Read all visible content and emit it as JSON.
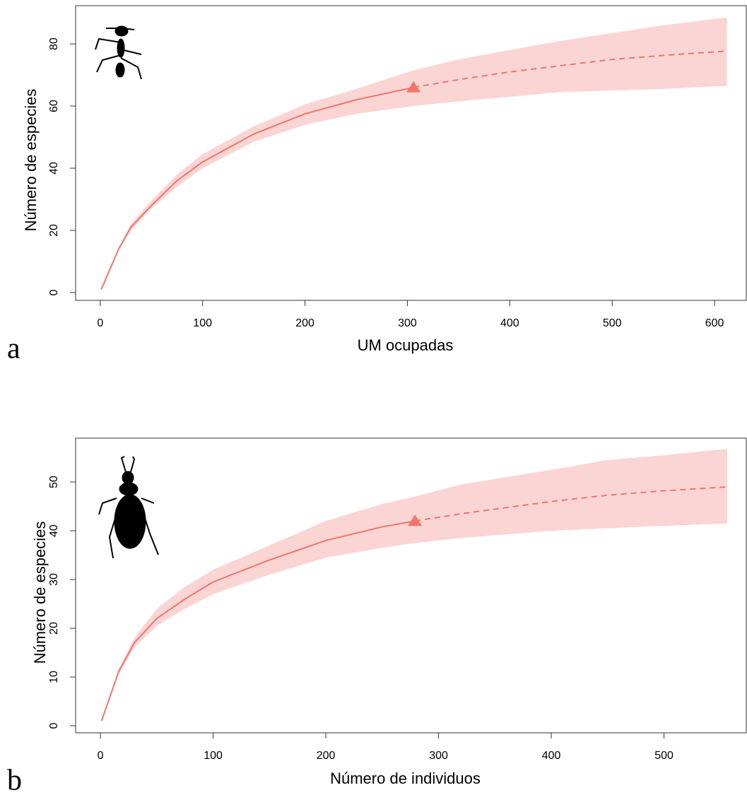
{
  "chart_data": [
    {
      "type": "line",
      "panel_label": "a",
      "x_label": "UM ocupadas",
      "y_label": "Número de especies",
      "x": [
        1,
        18,
        30,
        50,
        75,
        100,
        150,
        200,
        250,
        306,
        350,
        400,
        450,
        500,
        550,
        612
      ],
      "series": [
        {
          "color": "#f0756b",
          "style": "solid",
          "values": [
            1,
            14,
            21,
            28,
            36,
            42,
            51,
            57.5,
            62,
            66,
            null,
            null,
            null,
            null,
            null,
            null
          ]
        },
        {
          "color": "#f0756b",
          "style": "dashed",
          "values": [
            null,
            null,
            null,
            null,
            null,
            null,
            null,
            null,
            null,
            66,
            68.5,
            71,
            73,
            75,
            76.3,
            77.7
          ]
        }
      ],
      "band_color": "#fbd5d3",
      "lower": [
        1,
        13.5,
        20,
        27,
        34,
        40,
        48.5,
        54,
        57.5,
        60,
        61.5,
        63,
        64.5,
        65,
        65.5,
        66.5
      ],
      "upper": [
        1,
        14.5,
        22,
        29.5,
        38,
        44.5,
        53.5,
        60.5,
        65.5,
        71.5,
        75,
        78,
        81,
        83.5,
        86,
        88.5
      ],
      "observed": {
        "x": 306,
        "y": 66
      },
      "xlim": [
        -24,
        631
      ],
      "ylim": [
        -2.5,
        92.3
      ],
      "xticks": [
        0,
        100,
        200,
        300,
        400,
        500,
        600
      ],
      "yticks": [
        0,
        20,
        40,
        60,
        80
      ]
    },
    {
      "type": "line",
      "panel_label": "b",
      "x_label": "Número de individuos",
      "y_label": "Número de especies",
      "x": [
        1,
        16,
        30,
        50,
        75,
        100,
        150,
        200,
        250,
        279,
        320,
        400,
        450,
        500,
        556
      ],
      "series": [
        {
          "color": "#f0756b",
          "style": "solid",
          "values": [
            1,
            11,
            17,
            22,
            26,
            29.5,
            34,
            38,
            40.8,
            42,
            null,
            null,
            null,
            null,
            null
          ]
        },
        {
          "color": "#f0756b",
          "style": "dashed",
          "values": [
            null,
            null,
            null,
            null,
            null,
            null,
            null,
            null,
            null,
            42,
            43.5,
            46,
            47.3,
            48.2,
            49
          ]
        }
      ],
      "band_color": "#fbd5d3",
      "lower": [
        1,
        10.5,
        16,
        20.5,
        24,
        27,
        31,
        34.5,
        36.5,
        37.5,
        38.5,
        40,
        40.5,
        41,
        41.5
      ],
      "upper": [
        1,
        11.5,
        18,
        24,
        28.5,
        32,
        37,
        42,
        45.5,
        47,
        49.5,
        52.5,
        54.5,
        55.5,
        56.8
      ],
      "observed": {
        "x": 279,
        "y": 42
      },
      "xlim": [
        -22,
        573
      ],
      "ylim": [
        -1.45,
        59
      ],
      "xticks": [
        0,
        100,
        200,
        300,
        400,
        500
      ],
      "yticks": [
        0,
        10,
        20,
        30,
        40,
        50
      ]
    }
  ]
}
